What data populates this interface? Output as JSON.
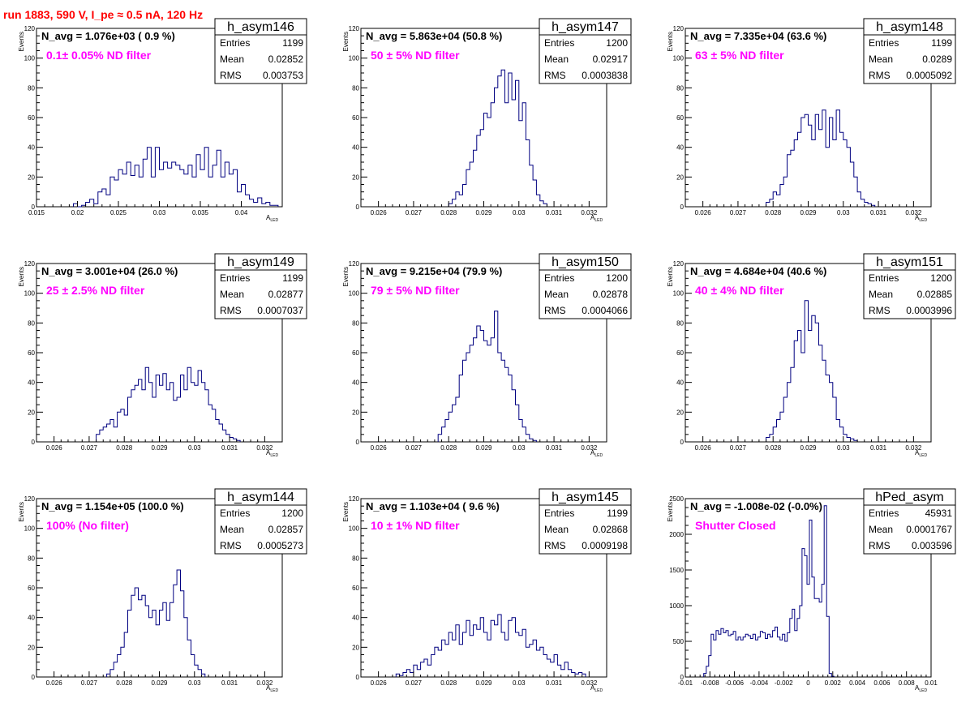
{
  "page_title": "run 1883,   590 V, I_pe ≈ 0.5 nA, 120 Hz",
  "colors": {
    "histogram": "#000080",
    "annotation": "#ff00ff",
    "title": "#ff0000",
    "frame": "#000000"
  },
  "y_axis_label": "Events",
  "x_axis_label_main": "A",
  "x_axis_label_sub": "LED",
  "chart_data": [
    {
      "type": "bar",
      "name": "h_asym146",
      "navg": "N_avg = 1.076e+03 ( 0.9 %)",
      "filter": "0.1± 0.05% ND filter",
      "stats": [
        [
          "Entries",
          "1199"
        ],
        [
          "Mean",
          "0.02852"
        ],
        [
          "RMS",
          "0.003753"
        ]
      ],
      "xlim": [
        0.015,
        0.045
      ],
      "ylim": [
        0,
        120
      ],
      "xticks": [
        0.015,
        0.02,
        0.025,
        0.03,
        0.035,
        0.04
      ],
      "xtick_labels": [
        "0.015",
        "0.02",
        "0.025",
        "0.03",
        "0.035",
        "0.04"
      ],
      "yticks": [
        0,
        20,
        40,
        60,
        80,
        100,
        120
      ],
      "ytick_labels": [
        "0",
        "20",
        "40",
        "60",
        "80",
        "100",
        "120"
      ],
      "bin_start": 0.0195,
      "bin_width": 0.0005,
      "values": [
        2,
        0,
        1,
        3,
        5,
        2,
        10,
        12,
        8,
        20,
        18,
        25,
        22,
        30,
        21,
        28,
        20,
        32,
        40,
        20,
        40,
        25,
        30,
        26,
        30,
        28,
        25,
        22,
        28,
        20,
        35,
        25,
        40,
        20,
        28,
        38,
        20,
        30,
        22,
        25,
        10,
        15,
        8,
        5,
        3,
        6,
        2,
        3,
        1,
        1
      ]
    },
    {
      "type": "bar",
      "name": "h_asym147",
      "navg": "N_avg = 5.863e+04 (50.8 %)",
      "filter": "50 ± 5% ND filter",
      "stats": [
        [
          "Entries",
          "1200"
        ],
        [
          "Mean",
          "0.02917"
        ],
        [
          "RMS",
          "0.0003838"
        ]
      ],
      "xlim": [
        0.0255,
        0.0325
      ],
      "ylim": [
        0,
        120
      ],
      "xticks": [
        0.026,
        0.027,
        0.028,
        0.029,
        0.03,
        0.031,
        0.032
      ],
      "xtick_labels": [
        "0.026",
        "0.027",
        "0.028",
        "0.029",
        "0.03",
        "0.031",
        "0.032"
      ],
      "yticks": [
        0,
        20,
        40,
        60,
        80,
        100,
        120
      ],
      "ytick_labels": [
        "0",
        "20",
        "40",
        "60",
        "80",
        "100",
        "120"
      ],
      "bin_start": 0.028,
      "bin_width": 0.0001,
      "values": [
        2,
        5,
        10,
        8,
        15,
        25,
        30,
        38,
        48,
        52,
        63,
        60,
        70,
        80,
        88,
        92,
        70,
        90,
        72,
        85,
        58,
        70,
        45,
        28,
        18,
        8,
        4,
        2
      ]
    },
    {
      "type": "bar",
      "name": "h_asym148",
      "navg": "N_avg = 7.335e+04 (63.6 %)",
      "filter": "63 ± 5% ND filter",
      "stats": [
        [
          "Entries",
          "1199"
        ],
        [
          "Mean",
          "0.0289"
        ],
        [
          "RMS",
          "0.0005092"
        ]
      ],
      "xlim": [
        0.0255,
        0.0325
      ],
      "ylim": [
        0,
        120
      ],
      "xticks": [
        0.026,
        0.027,
        0.028,
        0.029,
        0.03,
        0.031,
        0.032
      ],
      "xtick_labels": [
        "0.026",
        "0.027",
        "0.028",
        "0.029",
        "0.03",
        "0.031",
        "0.032"
      ],
      "yticks": [
        0,
        20,
        40,
        60,
        80,
        100,
        120
      ],
      "ytick_labels": [
        "0",
        "20",
        "40",
        "60",
        "80",
        "100",
        "120"
      ],
      "bin_start": 0.0278,
      "bin_width": 0.0001,
      "values": [
        3,
        5,
        10,
        8,
        15,
        20,
        35,
        38,
        45,
        50,
        60,
        62,
        55,
        45,
        62,
        52,
        65,
        40,
        60,
        45,
        65,
        50,
        45,
        40,
        30,
        20,
        10,
        5,
        3,
        2,
        1
      ]
    },
    {
      "type": "bar",
      "name": "h_asym149",
      "navg": "N_avg = 3.001e+04 (26.0 %)",
      "filter": "25 ± 2.5% ND filter",
      "stats": [
        [
          "Entries",
          "1199"
        ],
        [
          "Mean",
          "0.02877"
        ],
        [
          "RMS",
          "0.0007037"
        ]
      ],
      "xlim": [
        0.0255,
        0.0325
      ],
      "ylim": [
        0,
        120
      ],
      "xticks": [
        0.026,
        0.027,
        0.028,
        0.029,
        0.03,
        0.031,
        0.032
      ],
      "xtick_labels": [
        "0.026",
        "0.027",
        "0.028",
        "0.029",
        "0.03",
        "0.031",
        "0.032"
      ],
      "yticks": [
        0,
        20,
        40,
        60,
        80,
        100,
        120
      ],
      "ytick_labels": [
        "0",
        "20",
        "40",
        "60",
        "80",
        "100",
        "120"
      ],
      "bin_start": 0.0272,
      "bin_width": 0.0001,
      "values": [
        5,
        8,
        10,
        12,
        15,
        10,
        20,
        22,
        18,
        30,
        35,
        38,
        42,
        35,
        50,
        40,
        30,
        45,
        38,
        46,
        35,
        40,
        28,
        30,
        45,
        35,
        50,
        40,
        38,
        48,
        40,
        35,
        25,
        22,
        15,
        12,
        8,
        5,
        3,
        2,
        1
      ]
    },
    {
      "type": "bar",
      "name": "h_asym150",
      "navg": "N_avg = 9.215e+04 (79.9 %)",
      "filter": "79 ± 5% ND filter",
      "stats": [
        [
          "Entries",
          "1200"
        ],
        [
          "Mean",
          "0.02878"
        ],
        [
          "RMS",
          "0.0004066"
        ]
      ],
      "xlim": [
        0.0255,
        0.0325
      ],
      "ylim": [
        0,
        120
      ],
      "xticks": [
        0.026,
        0.027,
        0.028,
        0.029,
        0.03,
        0.031,
        0.032
      ],
      "xtick_labels": [
        "0.026",
        "0.027",
        "0.028",
        "0.029",
        "0.03",
        "0.031",
        "0.032"
      ],
      "yticks": [
        0,
        20,
        40,
        60,
        80,
        100,
        120
      ],
      "ytick_labels": [
        "0",
        "20",
        "40",
        "60",
        "80",
        "100",
        "120"
      ],
      "bin_start": 0.0277,
      "bin_width": 0.0001,
      "values": [
        5,
        10,
        15,
        20,
        25,
        30,
        45,
        55,
        60,
        65,
        70,
        78,
        75,
        68,
        65,
        70,
        88,
        60,
        55,
        50,
        45,
        35,
        25,
        15,
        10,
        5,
        2,
        1
      ]
    },
    {
      "type": "bar",
      "name": "h_asym151",
      "navg": "N_avg = 4.684e+04 (40.6 %)",
      "filter": "40 ± 4% ND filter",
      "stats": [
        [
          "Entries",
          "1200"
        ],
        [
          "Mean",
          "0.02885"
        ],
        [
          "RMS",
          "0.0003996"
        ]
      ],
      "xlim": [
        0.0255,
        0.0325
      ],
      "ylim": [
        0,
        120
      ],
      "xticks": [
        0.026,
        0.027,
        0.028,
        0.029,
        0.03,
        0.031,
        0.032
      ],
      "xtick_labels": [
        "0.026",
        "0.027",
        "0.028",
        "0.029",
        "0.03",
        "0.031",
        "0.032"
      ],
      "yticks": [
        0,
        20,
        40,
        60,
        80,
        100,
        120
      ],
      "ytick_labels": [
        "0",
        "20",
        "40",
        "60",
        "80",
        "100",
        "120"
      ],
      "bin_start": 0.0278,
      "bin_width": 0.0001,
      "values": [
        3,
        5,
        10,
        15,
        20,
        30,
        40,
        50,
        68,
        75,
        60,
        95,
        75,
        85,
        80,
        65,
        55,
        45,
        40,
        30,
        15,
        10,
        5,
        3,
        2,
        1
      ]
    },
    {
      "type": "bar",
      "name": "h_asym144",
      "navg": "N_avg = 1.154e+05 (100.0 %)",
      "filter": "100% (No filter)",
      "stats": [
        [
          "Entries",
          "1200"
        ],
        [
          "Mean",
          "0.02857"
        ],
        [
          "RMS",
          "0.0005273"
        ]
      ],
      "xlim": [
        0.0255,
        0.0325
      ],
      "ylim": [
        0,
        120
      ],
      "xticks": [
        0.026,
        0.027,
        0.028,
        0.029,
        0.03,
        0.031,
        0.032
      ],
      "xtick_labels": [
        "0.026",
        "0.027",
        "0.028",
        "0.029",
        "0.03",
        "0.031",
        "0.032"
      ],
      "yticks": [
        0,
        20,
        40,
        60,
        80,
        100,
        120
      ],
      "ytick_labels": [
        "0",
        "20",
        "40",
        "60",
        "80",
        "100",
        "120"
      ],
      "bin_start": 0.0275,
      "bin_width": 0.0001,
      "values": [
        2,
        5,
        10,
        15,
        20,
        30,
        45,
        55,
        60,
        52,
        55,
        48,
        40,
        45,
        35,
        45,
        50,
        38,
        50,
        62,
        72,
        58,
        40,
        25,
        15,
        8,
        5,
        2
      ]
    },
    {
      "type": "bar",
      "name": "h_asym145",
      "navg": "N_avg = 1.103e+04 ( 9.6 %)",
      "filter": "10 ± 1% ND filter",
      "stats": [
        [
          "Entries",
          "1199"
        ],
        [
          "Mean",
          "0.02868"
        ],
        [
          "RMS",
          "0.0009198"
        ]
      ],
      "xlim": [
        0.0255,
        0.0325
      ],
      "ylim": [
        0,
        120
      ],
      "xticks": [
        0.026,
        0.027,
        0.028,
        0.029,
        0.03,
        0.031,
        0.032
      ],
      "xtick_labels": [
        "0.026",
        "0.027",
        "0.028",
        "0.029",
        "0.03",
        "0.031",
        "0.032"
      ],
      "yticks": [
        0,
        20,
        40,
        60,
        80,
        100,
        120
      ],
      "ytick_labels": [
        "0",
        "20",
        "40",
        "60",
        "80",
        "100",
        "120"
      ],
      "bin_start": 0.0265,
      "bin_width": 0.0001,
      "values": [
        2,
        1,
        3,
        5,
        3,
        8,
        5,
        10,
        12,
        8,
        15,
        20,
        18,
        25,
        22,
        30,
        25,
        35,
        22,
        30,
        38,
        28,
        35,
        32,
        40,
        30,
        25,
        38,
        35,
        42,
        30,
        25,
        38,
        40,
        30,
        28,
        32,
        20,
        22,
        25,
        18,
        20,
        15,
        12,
        10,
        15,
        8,
        5,
        10,
        5,
        3,
        2,
        3,
        2
      ]
    },
    {
      "type": "bar",
      "name": "hPed_asym",
      "navg": "N_avg = -1.008e-02 (-0.0%)",
      "filter": "Shutter Closed",
      "stats": [
        [
          "Entries",
          "45931"
        ],
        [
          "Mean",
          "0.0001767"
        ],
        [
          "RMS",
          "0.003596"
        ]
      ],
      "xlim": [
        -0.01,
        0.01
      ],
      "ylim": [
        0,
        2500
      ],
      "xticks": [
        -0.01,
        -0.008,
        -0.006,
        -0.004,
        -0.002,
        0,
        0.002,
        0.004,
        0.006,
        0.008,
        0.01
      ],
      "xtick_labels": [
        "-0.01",
        "-0.008",
        "-0.006",
        "-0.004",
        "-0.002",
        "0",
        "0.002",
        "0.004",
        "0.006",
        "0.008",
        "0.01"
      ],
      "yticks": [
        0,
        500,
        1000,
        1500,
        2000,
        2500
      ],
      "ytick_labels": [
        "0",
        "500",
        "1000",
        "1500",
        "2000",
        "2500"
      ],
      "bin_start": -0.0085,
      "bin_width": 0.0002,
      "values": [
        50,
        150,
        300,
        600,
        520,
        650,
        600,
        680,
        620,
        650,
        580,
        600,
        640,
        520,
        560,
        520,
        560,
        600,
        580,
        540,
        600,
        520,
        560,
        640,
        620,
        540,
        600,
        560,
        650,
        700,
        560,
        520,
        600,
        500,
        620,
        820,
        950,
        650,
        820,
        1000,
        1800,
        1700,
        1300,
        2200,
        1400,
        1100,
        1100,
        1050,
        1300,
        2400,
        850,
        50,
        10
      ]
    }
  ]
}
